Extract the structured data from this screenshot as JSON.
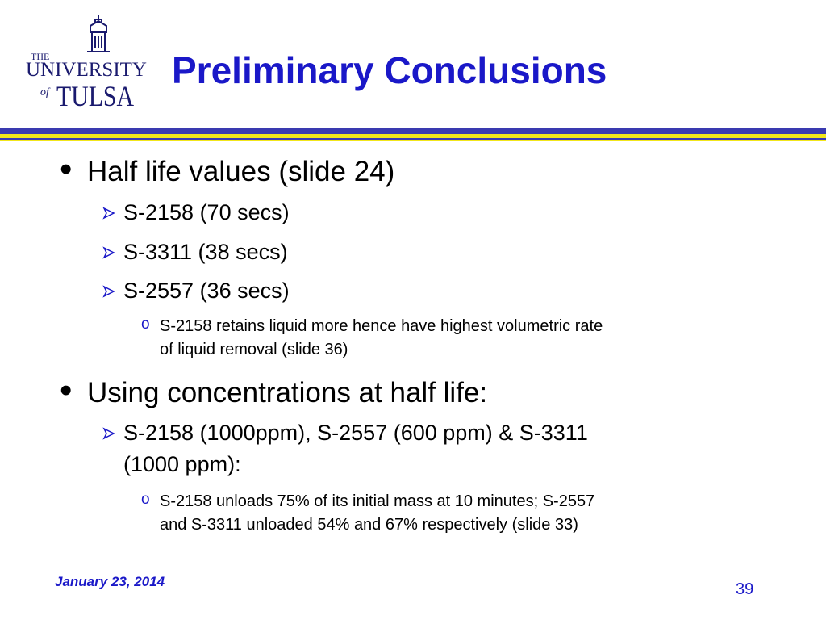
{
  "logo": {
    "the": "THE",
    "university": "UNIVERSITY",
    "of": "of",
    "tulsa": "TULSA"
  },
  "title": "Preliminary Conclusions",
  "colors": {
    "title": "#1a18c8",
    "rule_blue": "#3a3ab0",
    "rule_yellow": "#f2e61a"
  },
  "bullets": {
    "b1": "Half life values (slide 24)",
    "b1_s1": "S-2158 (70 secs)",
    "b1_s2": "S-3311 (38 secs)",
    "b1_s3": "S-2557 (36 secs)",
    "b1_s3_n1_l1": "S-2158 retains liquid more hence have highest volumetric rate",
    "b1_s3_n1_l2": "of liquid removal (slide 36)",
    "b2": "Using concentrations at half life:",
    "b2_s1_l1": "S-2158 (1000ppm), S-2557 (600 ppm) & S-3311",
    "b2_s1_l2": "(1000 ppm):",
    "b2_s1_n1_l1": "S-2158 unloads 75% of its initial mass at 10 minutes; S-2557",
    "b2_s1_n1_l2": "and S-3311 unloaded 54% and 67% respectively (slide 33)"
  },
  "footer": {
    "date": "January 23, 2014",
    "page": "39"
  }
}
